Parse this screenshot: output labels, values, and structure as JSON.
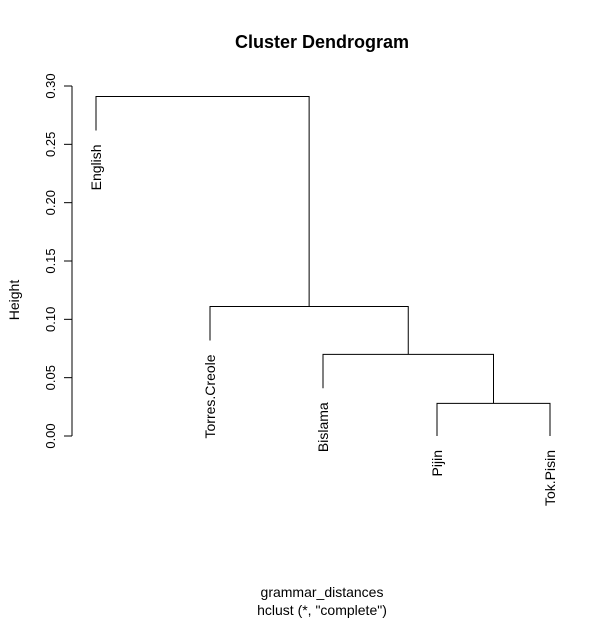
{
  "chart_data": {
    "type": "dendrogram",
    "title": "Cluster Dendrogram",
    "ylabel": "Height",
    "xlabel": "grammar_distances",
    "sublabel": "hclust (*, \"complete\")",
    "ylim": [
      0,
      0.3
    ],
    "yticks": [
      "0.00",
      "0.05",
      "0.10",
      "0.15",
      "0.20",
      "0.25",
      "0.30"
    ],
    "leaves": [
      "English",
      "Torres.Creole",
      "Bislama",
      "Pijin",
      "Tok.Pisin"
    ],
    "merges": [
      {
        "left": "Pijin",
        "right": "Tok.Pisin",
        "height": 0.028
      },
      {
        "left": "Bislama",
        "right": "(Pijin, Tok.Pisin)",
        "height": 0.07
      },
      {
        "left": "Torres.Creole",
        "right": "(Bislama, Pijin, Tok.Pisin)",
        "height": 0.111
      },
      {
        "left": "English",
        "right": "(Torres.Creole, Bislama, Pijin, Tok.Pisin)",
        "height": 0.291
      }
    ]
  }
}
